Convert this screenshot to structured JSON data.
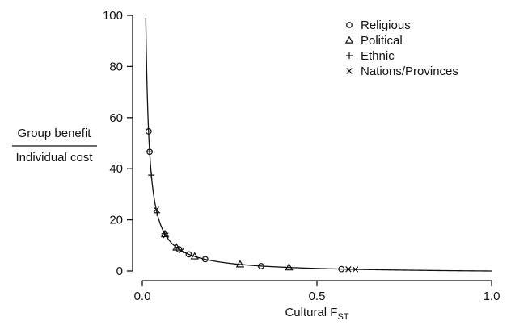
{
  "chart_data": {
    "type": "scatter",
    "xlabel": {
      "main": "Cultural F",
      "subscript": "ST"
    },
    "ylabel": {
      "numerator": "Group benefit",
      "denominator": "Individual cost"
    },
    "xlim": [
      0,
      1.0
    ],
    "ylim": [
      0,
      100
    ],
    "xticks": [
      "0.0",
      "0.5",
      "1.0"
    ],
    "xtick_values": [
      0,
      0.5,
      1.0
    ],
    "yticks": [
      "0",
      "20",
      "40",
      "60",
      "80",
      "100"
    ],
    "ytick_values": [
      0,
      20,
      40,
      60,
      80,
      100
    ],
    "grid": false,
    "legend_position": "top-right",
    "curve": {
      "formula": "y = 1/x - 1",
      "x_start": 0.01,
      "x_end": 1.0
    },
    "series": [
      {
        "name": "Religious",
        "marker": "circle",
        "points": [
          [
            0.018,
            54.6
          ],
          [
            0.021,
            46.6
          ],
          [
            0.105,
            8.5
          ],
          [
            0.133,
            6.5
          ],
          [
            0.18,
            4.6
          ],
          [
            0.34,
            1.9
          ],
          [
            0.57,
            0.75
          ]
        ]
      },
      {
        "name": "Political",
        "marker": "triangle",
        "points": [
          [
            0.065,
            14.4
          ],
          [
            0.098,
            9.2
          ],
          [
            0.15,
            5.7
          ],
          [
            0.28,
            2.6
          ],
          [
            0.42,
            1.4
          ]
        ]
      },
      {
        "name": "Ethnic",
        "marker": "plus",
        "points": [
          [
            0.021,
            46.6
          ],
          [
            0.026,
            37.5
          ],
          [
            0.042,
            22.8
          ],
          [
            0.064,
            14.6
          ]
        ]
      },
      {
        "name": "Nations/Provinces",
        "marker": "cross",
        "points": [
          [
            0.04,
            24.0
          ],
          [
            0.067,
            13.9
          ],
          [
            0.112,
            7.9
          ],
          [
            0.59,
            0.7
          ],
          [
            0.61,
            0.65
          ]
        ]
      }
    ]
  }
}
